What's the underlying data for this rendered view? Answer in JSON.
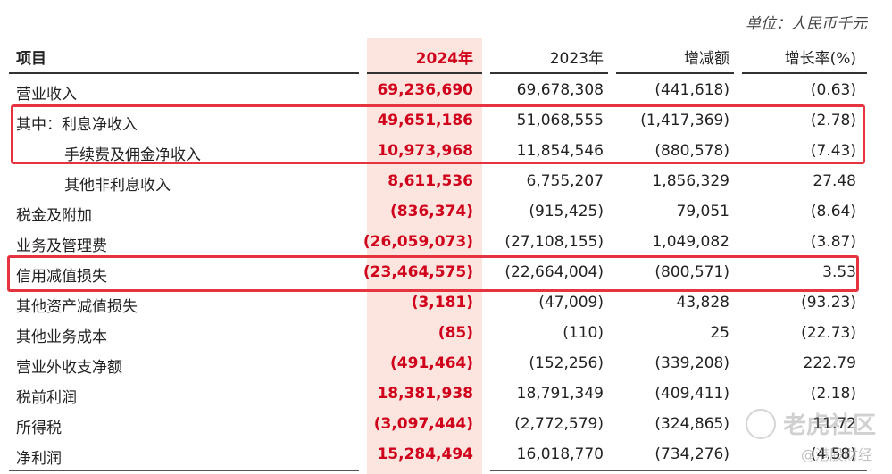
{
  "unit": "单位：人民币千元",
  "header": {
    "item": "项目",
    "y2024": "2024年",
    "y2023": "2023年",
    "change": "增减额",
    "growth": "增长率(%)"
  },
  "rows": [
    {
      "label": "营业收入",
      "v2024": "69,236,690",
      "v2023": "69,678,308",
      "change": "(441,618)",
      "growth": "(0.63)"
    },
    {
      "label": "其中：利息净收入",
      "v2024": "49,651,186",
      "v2023": "51,068,555",
      "change": "(1,417,369)",
      "growth": "(2.78)"
    },
    {
      "label": "手续费及佣金净收入",
      "v2024": "10,973,968",
      "v2023": "11,854,546",
      "change": "(880,578)",
      "growth": "(7.43)"
    },
    {
      "label": "其他非利息收入",
      "v2024": "8,611,536",
      "v2023": "6,755,207",
      "change": "1,856,329",
      "growth": "27.48"
    },
    {
      "label": "税金及附加",
      "v2024": "(836,374)",
      "v2023": "(915,425)",
      "change": "79,051",
      "growth": "(8.64)"
    },
    {
      "label": "业务及管理费",
      "v2024": "(26,059,073)",
      "v2023": "(27,108,155)",
      "change": "1,049,082",
      "growth": "(3.87)"
    },
    {
      "label": "信用减值损失",
      "v2024": "(23,464,575)",
      "v2023": "(22,664,004)",
      "change": "(800,571)",
      "growth": "3.53"
    },
    {
      "label": "其他资产减值损失",
      "v2024": "(3,181)",
      "v2023": "(47,009)",
      "change": "43,828",
      "growth": "(93.23)"
    },
    {
      "label": "其他业务成本",
      "v2024": "(85)",
      "v2023": "(110)",
      "change": "25",
      "growth": "(22.73)"
    },
    {
      "label": "营业外收支净额",
      "v2024": "(491,464)",
      "v2023": "(152,256)",
      "change": "(339,208)",
      "growth": "222.79"
    },
    {
      "label": "税前利润",
      "v2024": "18,381,938",
      "v2023": "18,791,349",
      "change": "(409,411)",
      "growth": "(2.18)"
    },
    {
      "label": "所得税",
      "v2024": "(3,097,444)",
      "v2023": "(2,772,579)",
      "change": "(324,865)",
      "growth": "11.72"
    },
    {
      "label": "净利润",
      "v2024": "15,284,494",
      "v2023": "16,018,770",
      "change": "(734,276)",
      "growth": "(4.58)"
    }
  ],
  "watermark": {
    "main": "老虎社区",
    "sub": "@港股财经"
  },
  "colors": {
    "highlight_column": "#fde5df",
    "accent_red": "#d0021b",
    "box_red": "#e5343f"
  }
}
